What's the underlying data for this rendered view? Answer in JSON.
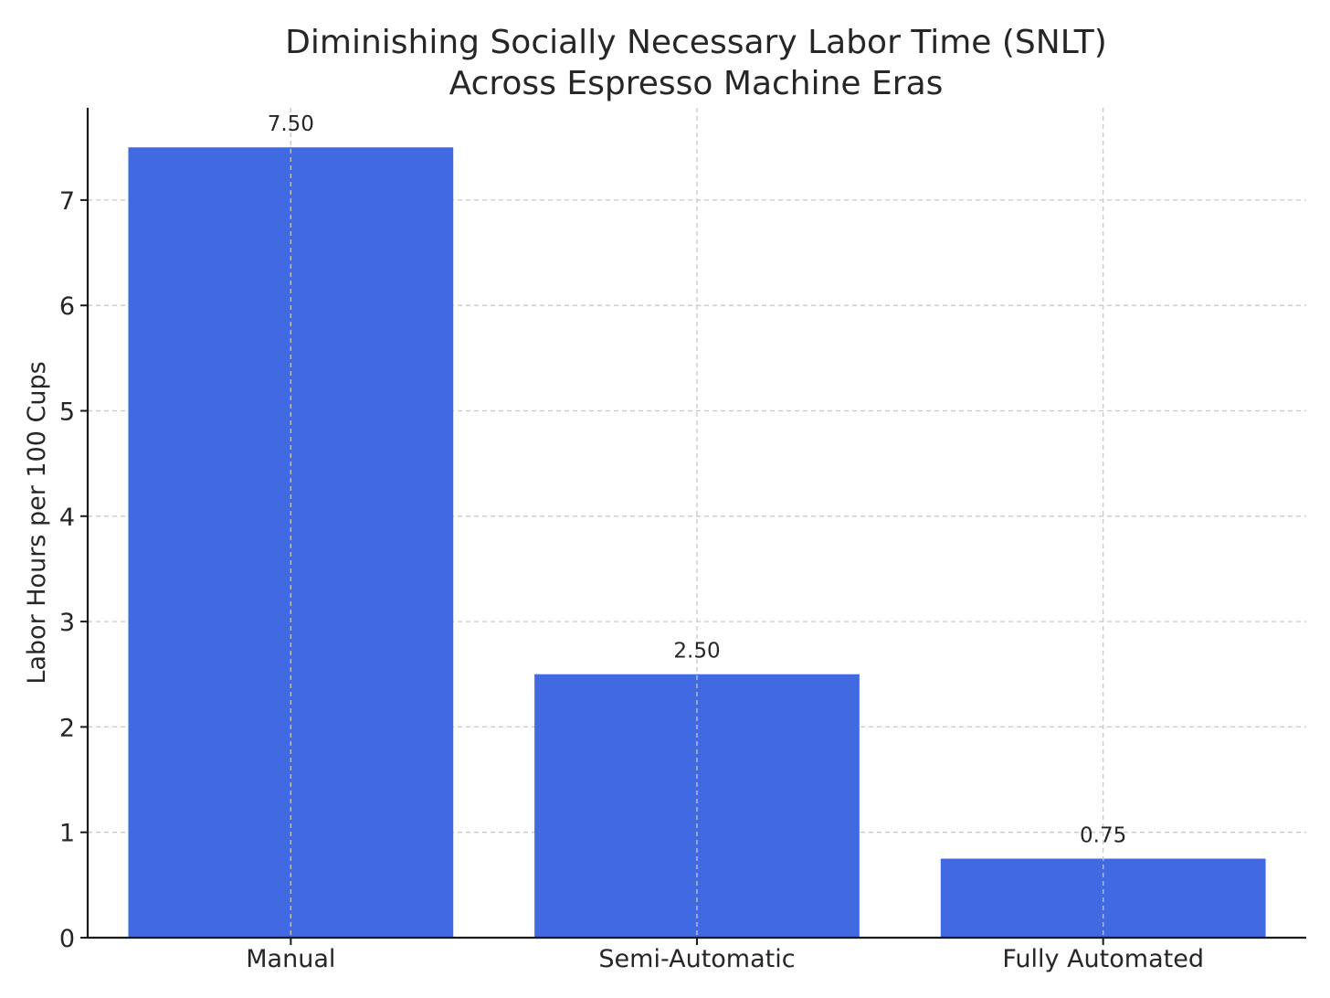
{
  "chart_data": {
    "type": "bar",
    "title_lines": [
      "Diminishing Socially Necessary Labor Time (SNLT)",
      "Across Espresso Machine Eras"
    ],
    "categories": [
      "Manual",
      "Semi-Automatic",
      "Fully Automated"
    ],
    "values": [
      7.5,
      2.5,
      0.75
    ],
    "data_labels": [
      "7.50",
      "2.50",
      "0.75"
    ],
    "xlabel": "",
    "ylabel": "Labor Hours per 100 Cups",
    "ylim": [
      0,
      7.875
    ],
    "yticks": [
      0,
      1,
      2,
      3,
      4,
      5,
      6,
      7
    ],
    "grid": true,
    "bar_color": "#4169e1"
  }
}
